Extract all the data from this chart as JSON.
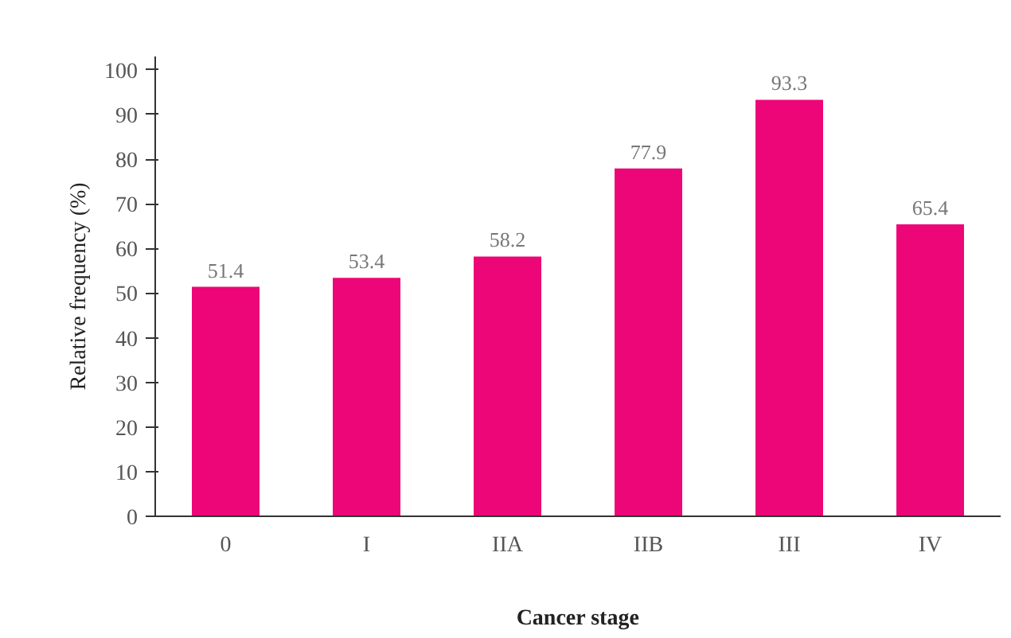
{
  "chart_data": {
    "type": "bar",
    "xlabel": "Cancer stage",
    "ylabel": "Relative frequency (%)",
    "categories": [
      "0",
      "I",
      "IIA",
      "IIB",
      "III",
      "IV"
    ],
    "values": [
      51.4,
      53.4,
      58.2,
      77.9,
      93.3,
      65.4
    ],
    "color": "#ec0677",
    "ylim": [
      0,
      103
    ],
    "yticks": [
      0,
      10,
      20,
      30,
      40,
      50,
      60,
      70,
      80,
      90,
      100
    ],
    "data_labels": true,
    "grid": false
  }
}
